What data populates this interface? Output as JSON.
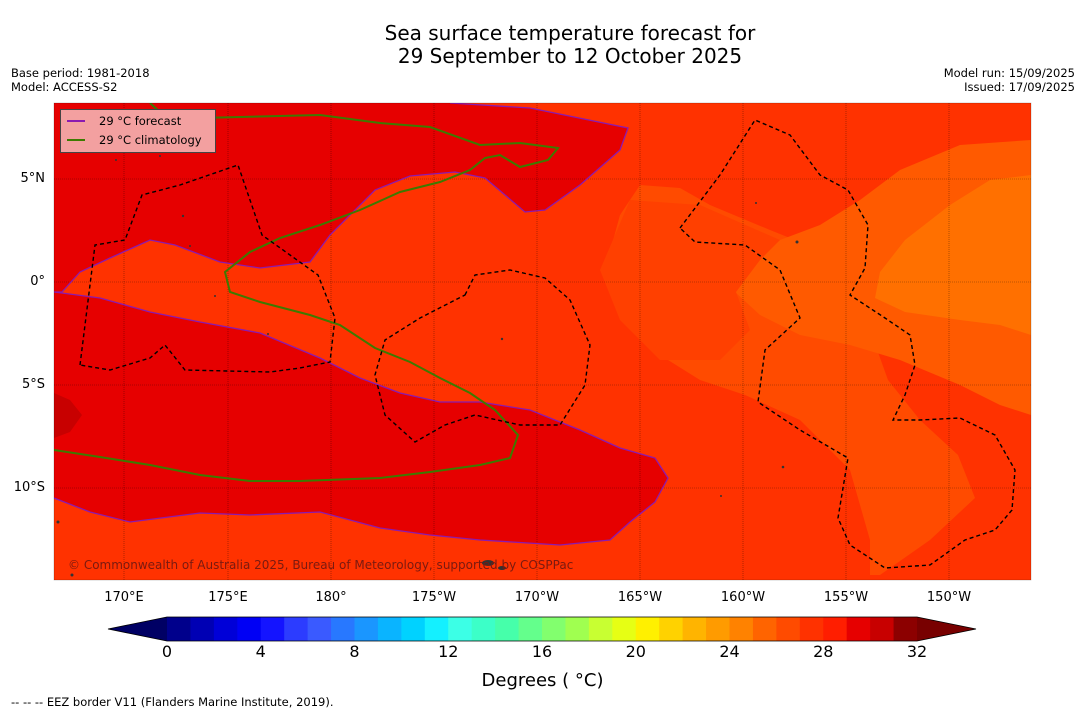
{
  "title": {
    "line1": "Sea surface temperature forecast for",
    "line2": "29 September to 12 October 2025"
  },
  "meta": {
    "base_period": "Base period: 1981-2018",
    "model": "Model: ACCESS-S2",
    "model_run": "Model run: 15/09/2025",
    "issued": "Issued: 17/09/2025"
  },
  "axes": {
    "lat_labels": [
      "5°N",
      "0°",
      "5°S",
      "10°S"
    ],
    "lon_labels": [
      "170°E",
      "175°E",
      "180°",
      "175°W",
      "170°W",
      "165°W",
      "160°W",
      "155°W",
      "150°W"
    ]
  },
  "legend": {
    "forecast": "29 °C  forecast",
    "climatology": "29 °C  climatology",
    "forecast_color": "#8b1ab0",
    "climatology_color": "#3d7a00"
  },
  "copyright": "© Commonwealth of Australia 2025, Bureau of Meteorology, supported by COSPPac",
  "colorbar": {
    "ticks": [
      "0",
      "4",
      "8",
      "12",
      "16",
      "20",
      "24",
      "28",
      "32"
    ],
    "label": "Degrees ( °C)",
    "min": 0,
    "max": 32,
    "step": 1,
    "colors": [
      "#00008c",
      "#0000b4",
      "#0000d8",
      "#0000f5",
      "#1414ff",
      "#2c3cff",
      "#3a5aff",
      "#2878ff",
      "#1a96ff",
      "#0ab4ff",
      "#00d2ff",
      "#14f0ff",
      "#3cffe6",
      "#3cffc8",
      "#46ffaa",
      "#64ff8c",
      "#82ff6e",
      "#a0ff50",
      "#c8ff32",
      "#e6ff14",
      "#fff000",
      "#ffd200",
      "#ffb400",
      "#ff9b00",
      "#ff8200",
      "#ff6400",
      "#ff4b00",
      "#ff3200",
      "#ff1e00",
      "#e60000",
      "#c80000",
      "#8c0000"
    ]
  },
  "footnote": "--  --  -- EEZ border V11 (Flanders Marine Institute, 2019)."
}
